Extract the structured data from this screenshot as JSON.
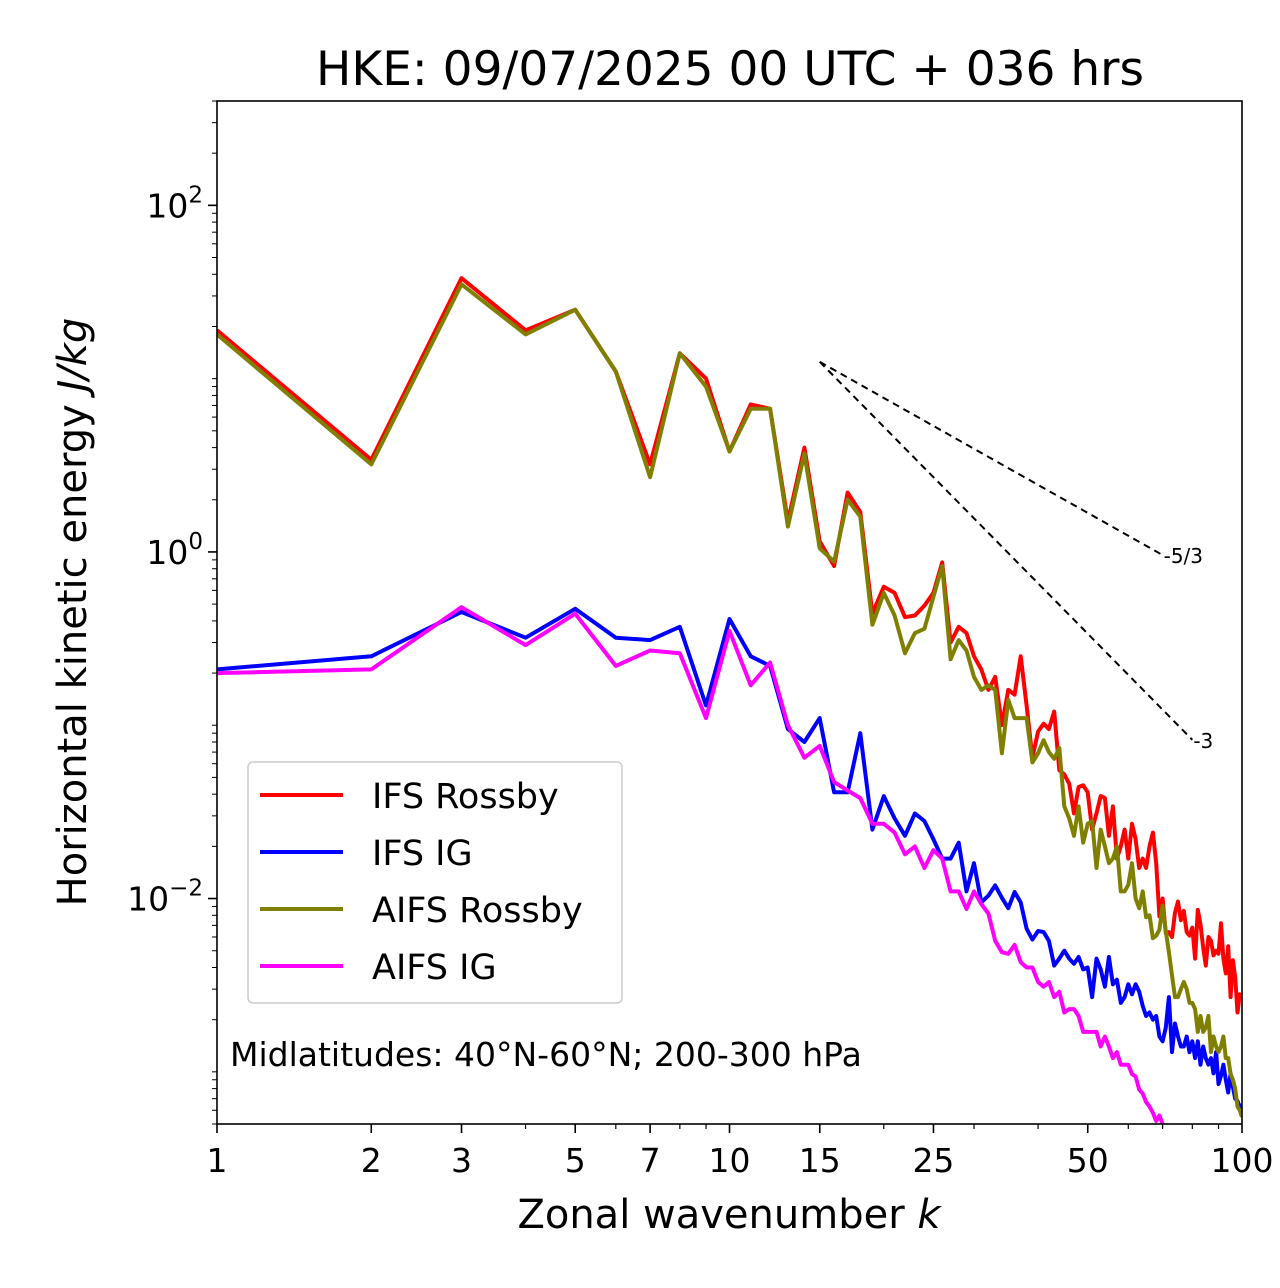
{
  "chart_data": {
    "type": "line",
    "title": "HKE: 09/07/2025 00 UTC + 036 hrs",
    "xlabel": "Zonal wavenumber",
    "xlabel_var": "k",
    "ylabel": "Horizontal kinetic energy",
    "ylabel_units": "J/kg",
    "xscale": "log",
    "yscale": "log",
    "xlim": [
      1,
      100
    ],
    "ylim": [
      0.0005,
      400
    ],
    "x_ticks": [
      {
        "value": 1,
        "label": "1"
      },
      {
        "value": 2,
        "label": "2"
      },
      {
        "value": 3,
        "label": "3"
      },
      {
        "value": 5,
        "label": "5"
      },
      {
        "value": 7,
        "label": "7"
      },
      {
        "value": 10,
        "label": "10"
      },
      {
        "value": 15,
        "label": "15"
      },
      {
        "value": 25,
        "label": "25"
      },
      {
        "value": 50,
        "label": "50"
      },
      {
        "value": 100,
        "label": "100"
      }
    ],
    "y_ticks": [
      {
        "value": 100,
        "base": "10",
        "exp": "2"
      },
      {
        "value": 1,
        "base": "10",
        "exp": "0"
      },
      {
        "value": 0.01,
        "base": "10",
        "exp": "−2"
      }
    ],
    "legend_position": "lower-left",
    "annotation": "Midlatitudes: 40°N-60°N; 200-300 hPa",
    "reference_slopes": [
      {
        "label": "-5/3",
        "slope": -1.6667,
        "x_start": 15,
        "x_end": 70,
        "y_start": 12.5
      },
      {
        "label": "-3",
        "slope": -3,
        "x_start": 15,
        "x_end": 80,
        "y_start": 12.5
      }
    ],
    "series": [
      {
        "name": "IFS Rossby",
        "color": "#ff0000",
        "x": [
          1,
          2,
          3,
          4,
          5,
          6,
          7,
          8,
          9,
          10,
          11,
          12,
          13,
          14,
          15,
          16,
          17,
          18,
          19,
          20,
          21,
          22,
          23,
          24,
          25,
          26,
          27,
          28,
          29,
          30,
          31,
          32,
          33,
          34,
          35,
          36,
          37,
          38,
          39,
          40,
          41,
          42,
          43,
          44,
          45,
          46,
          47,
          48,
          49,
          50,
          51,
          52,
          53,
          54,
          55,
          56,
          57,
          58,
          59,
          60,
          61,
          62,
          63,
          64,
          65,
          66,
          67,
          68,
          69,
          70,
          71,
          72,
          73,
          74,
          75,
          76,
          77,
          78,
          79,
          80,
          81,
          82,
          83,
          84,
          85,
          86,
          87,
          88,
          89,
          90,
          91,
          92,
          93,
          94,
          95,
          96,
          97,
          98,
          99,
          100
        ],
        "y": [
          19,
          3.4,
          38,
          19,
          25,
          11,
          3.2,
          14,
          10,
          3.8,
          7.1,
          6.7,
          1.5,
          4.0,
          1.15,
          0.83,
          2.2,
          1.7,
          0.44,
          0.63,
          0.58,
          0.42,
          0.43,
          0.49,
          0.58,
          0.87,
          0.3,
          0.37,
          0.34,
          0.25,
          0.21,
          0.16,
          0.19,
          0.1,
          0.16,
          0.15,
          0.25,
          0.13,
          0.065,
          0.092,
          0.102,
          0.095,
          0.12,
          0.055,
          0.052,
          0.046,
          0.031,
          0.044,
          0.045,
          0.041,
          0.025,
          0.031,
          0.039,
          0.038,
          0.023,
          0.034,
          0.017,
          0.02,
          0.025,
          0.017,
          0.027,
          0.022,
          0.015,
          0.017,
          0.015,
          0.02,
          0.024,
          0.016,
          0.0079,
          0.01,
          0.0063,
          0.0064,
          0.006,
          0.0083,
          0.0096,
          0.0075,
          0.0085,
          0.0064,
          0.0061,
          0.0068,
          0.0045,
          0.0086,
          0.0071,
          0.0052,
          0.0041,
          0.006,
          0.0057,
          0.0047,
          0.005,
          0.0048,
          0.0072,
          0.0045,
          0.0037,
          0.0053,
          0.0027,
          0.0044,
          0.0035,
          0.0022,
          0.0028,
          0.0026
        ]
      },
      {
        "name": "IFS IG",
        "color": "#0000ff",
        "x": [
          1,
          2,
          3,
          4,
          5,
          6,
          7,
          8,
          9,
          10,
          11,
          12,
          13,
          14,
          15,
          16,
          17,
          18,
          19,
          20,
          21,
          22,
          23,
          24,
          25,
          26,
          27,
          28,
          29,
          30,
          31,
          32,
          33,
          34,
          35,
          36,
          37,
          38,
          39,
          40,
          41,
          42,
          43,
          44,
          45,
          46,
          47,
          48,
          49,
          50,
          51,
          52,
          53,
          54,
          55,
          56,
          57,
          58,
          59,
          60,
          61,
          62,
          63,
          64,
          65,
          66,
          67,
          68,
          69,
          70,
          71,
          72,
          73,
          74,
          75,
          76,
          77,
          78,
          79,
          80,
          81,
          82,
          83,
          84,
          85,
          86,
          87,
          88,
          89,
          90,
          91,
          92,
          93,
          94,
          95,
          96,
          97,
          98,
          99,
          100
        ],
        "y": [
          0.21,
          0.25,
          0.45,
          0.32,
          0.47,
          0.32,
          0.31,
          0.37,
          0.13,
          0.41,
          0.25,
          0.22,
          0.095,
          0.08,
          0.11,
          0.041,
          0.041,
          0.09,
          0.025,
          0.039,
          0.029,
          0.023,
          0.031,
          0.028,
          0.022,
          0.017,
          0.017,
          0.021,
          0.011,
          0.016,
          0.0095,
          0.0104,
          0.0119,
          0.0101,
          0.0088,
          0.0109,
          0.0095,
          0.0067,
          0.0058,
          0.0065,
          0.0064,
          0.0057,
          0.0041,
          0.0045,
          0.005,
          0.0045,
          0.0042,
          0.0046,
          0.0039,
          0.004,
          0.0027,
          0.0045,
          0.0039,
          0.0031,
          0.0046,
          0.0032,
          0.0034,
          0.0025,
          0.0027,
          0.0032,
          0.0028,
          0.0032,
          0.0029,
          0.0024,
          0.0021,
          0.0022,
          0.002,
          0.0021,
          0.0016,
          0.0015,
          0.0018,
          0.0027,
          0.0013,
          0.0019,
          0.0016,
          0.0014,
          0.0014,
          0.0016,
          0.0013,
          0.0015,
          0.0012,
          0.0015,
          0.0011,
          0.0014,
          0.0012,
          0.0011,
          0.0012,
          0.00098,
          0.0013,
          0.00085,
          0.00095,
          0.0011,
          0.0009,
          0.00076,
          0.00098,
          0.00082,
          0.0007,
          0.00068,
          0.00062,
          0.00065
        ]
      },
      {
        "name": "AIFS Rossby",
        "color": "#808000",
        "x": [
          1,
          2,
          3,
          4,
          5,
          6,
          7,
          8,
          9,
          10,
          11,
          12,
          13,
          14,
          15,
          16,
          17,
          18,
          19,
          20,
          21,
          22,
          23,
          24,
          25,
          26,
          27,
          28,
          29,
          30,
          31,
          32,
          33,
          34,
          35,
          36,
          37,
          38,
          39,
          40,
          41,
          42,
          43,
          44,
          45,
          46,
          47,
          48,
          49,
          50,
          51,
          52,
          53,
          54,
          55,
          56,
          57,
          58,
          59,
          60,
          61,
          62,
          63,
          64,
          65,
          66,
          67,
          68,
          69,
          70,
          71,
          72,
          73,
          74,
          75,
          76,
          77,
          78,
          79,
          80,
          81,
          82,
          83,
          84,
          85,
          86,
          87,
          88,
          89,
          90,
          91,
          92,
          93,
          94,
          95,
          96,
          97,
          98,
          99,
          100
        ],
        "y": [
          18,
          3.2,
          35,
          18,
          25,
          11,
          2.7,
          14,
          9.0,
          3.8,
          6.7,
          6.7,
          1.4,
          3.7,
          1.05,
          0.88,
          2.0,
          1.6,
          0.38,
          0.58,
          0.43,
          0.26,
          0.34,
          0.36,
          0.55,
          0.83,
          0.24,
          0.31,
          0.27,
          0.19,
          0.16,
          0.17,
          0.16,
          0.069,
          0.14,
          0.11,
          0.11,
          0.11,
          0.061,
          0.069,
          0.082,
          0.07,
          0.064,
          0.074,
          0.034,
          0.029,
          0.023,
          0.034,
          0.021,
          0.027,
          0.028,
          0.015,
          0.025,
          0.02,
          0.016,
          0.017,
          0.02,
          0.011,
          0.011,
          0.012,
          0.016,
          0.01,
          0.0088,
          0.011,
          0.0078,
          0.008,
          0.0059,
          0.0061,
          0.0066,
          0.0091,
          0.0065,
          0.0049,
          0.0036,
          0.0027,
          0.0027,
          0.003,
          0.0033,
          0.003,
          0.0025,
          0.0025,
          0.0023,
          0.0017,
          0.0021,
          0.0017,
          0.0018,
          0.0021,
          0.0013,
          0.0016,
          0.0014,
          0.0013,
          0.0014,
          0.0016,
          0.0012,
          0.0012,
          0.00097,
          0.0009,
          0.0008,
          0.00063,
          0.0006,
          0.00055
        ]
      },
      {
        "name": "AIFS IG",
        "color": "#ff00ff",
        "x": [
          1,
          2,
          3,
          4,
          5,
          6,
          7,
          8,
          9,
          10,
          11,
          12,
          13,
          14,
          15,
          16,
          17,
          18,
          19,
          20,
          21,
          22,
          23,
          24,
          25,
          26,
          27,
          28,
          29,
          30,
          31,
          32,
          33,
          34,
          35,
          36,
          37,
          38,
          39,
          40,
          41,
          42,
          43,
          44,
          45,
          46,
          47,
          48,
          49,
          50,
          51,
          52,
          53,
          54,
          55,
          56,
          57,
          58,
          59,
          60,
          61,
          62,
          63,
          64,
          65,
          66,
          67,
          68,
          69,
          70
        ],
        "y": [
          0.2,
          0.21,
          0.48,
          0.29,
          0.44,
          0.22,
          0.27,
          0.26,
          0.11,
          0.35,
          0.17,
          0.23,
          0.1,
          0.065,
          0.076,
          0.047,
          0.042,
          0.038,
          0.027,
          0.027,
          0.024,
          0.018,
          0.02,
          0.015,
          0.019,
          0.017,
          0.011,
          0.011,
          0.0087,
          0.011,
          0.0093,
          0.0082,
          0.0057,
          0.0049,
          0.0048,
          0.0054,
          0.0043,
          0.004,
          0.004,
          0.0033,
          0.0031,
          0.0033,
          0.0027,
          0.0029,
          0.0022,
          0.0023,
          0.0023,
          0.0021,
          0.0017,
          0.0017,
          0.0017,
          0.0017,
          0.0014,
          0.0016,
          0.0014,
          0.0012,
          0.0013,
          0.0011,
          0.0011,
          0.0011,
          0.00097,
          0.00094,
          0.00079,
          0.00075,
          0.00067,
          0.00063,
          0.00058,
          0.00052,
          0.00056,
          0.0005
        ]
      }
    ]
  }
}
